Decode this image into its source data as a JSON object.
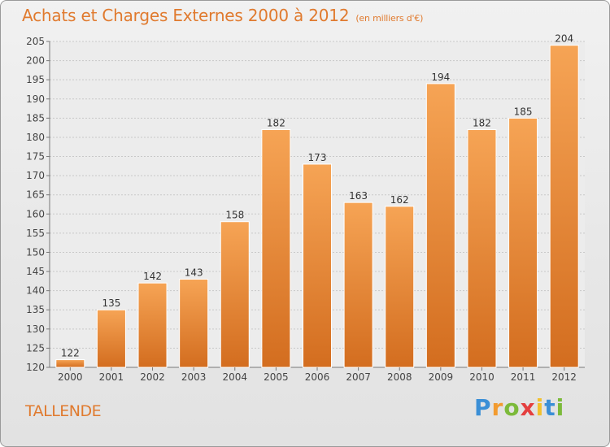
{
  "chart_data": {
    "type": "bar",
    "title": "Achats et Charges Externes 2000 à 2012",
    "subtitle": "(en milliers d'€)",
    "categories": [
      "2000",
      "2001",
      "2002",
      "2003",
      "2004",
      "2005",
      "2006",
      "2007",
      "2008",
      "2009",
      "2010",
      "2011",
      "2012"
    ],
    "values": [
      122,
      135,
      142,
      143,
      158,
      182,
      173,
      163,
      162,
      194,
      182,
      185,
      204
    ],
    "ylim": [
      120,
      205
    ],
    "yticks": [
      120,
      125,
      130,
      135,
      140,
      145,
      150,
      155,
      160,
      165,
      170,
      175,
      180,
      185,
      190,
      195,
      200,
      205
    ],
    "grid": true,
    "bar_color_top": "#f6a455",
    "bar_color_bottom": "#d36d1f",
    "xlabel": "",
    "ylabel": ""
  },
  "place_name": "TALLENDE",
  "logo": {
    "letters": [
      "P",
      "r",
      "o",
      "x",
      "i",
      "t",
      "i"
    ],
    "colors": [
      "#3b8fd6",
      "#f29b30",
      "#7cba3a",
      "#e43f3f",
      "#f2c12e",
      "#3b8fd6",
      "#7cba3a"
    ]
  }
}
